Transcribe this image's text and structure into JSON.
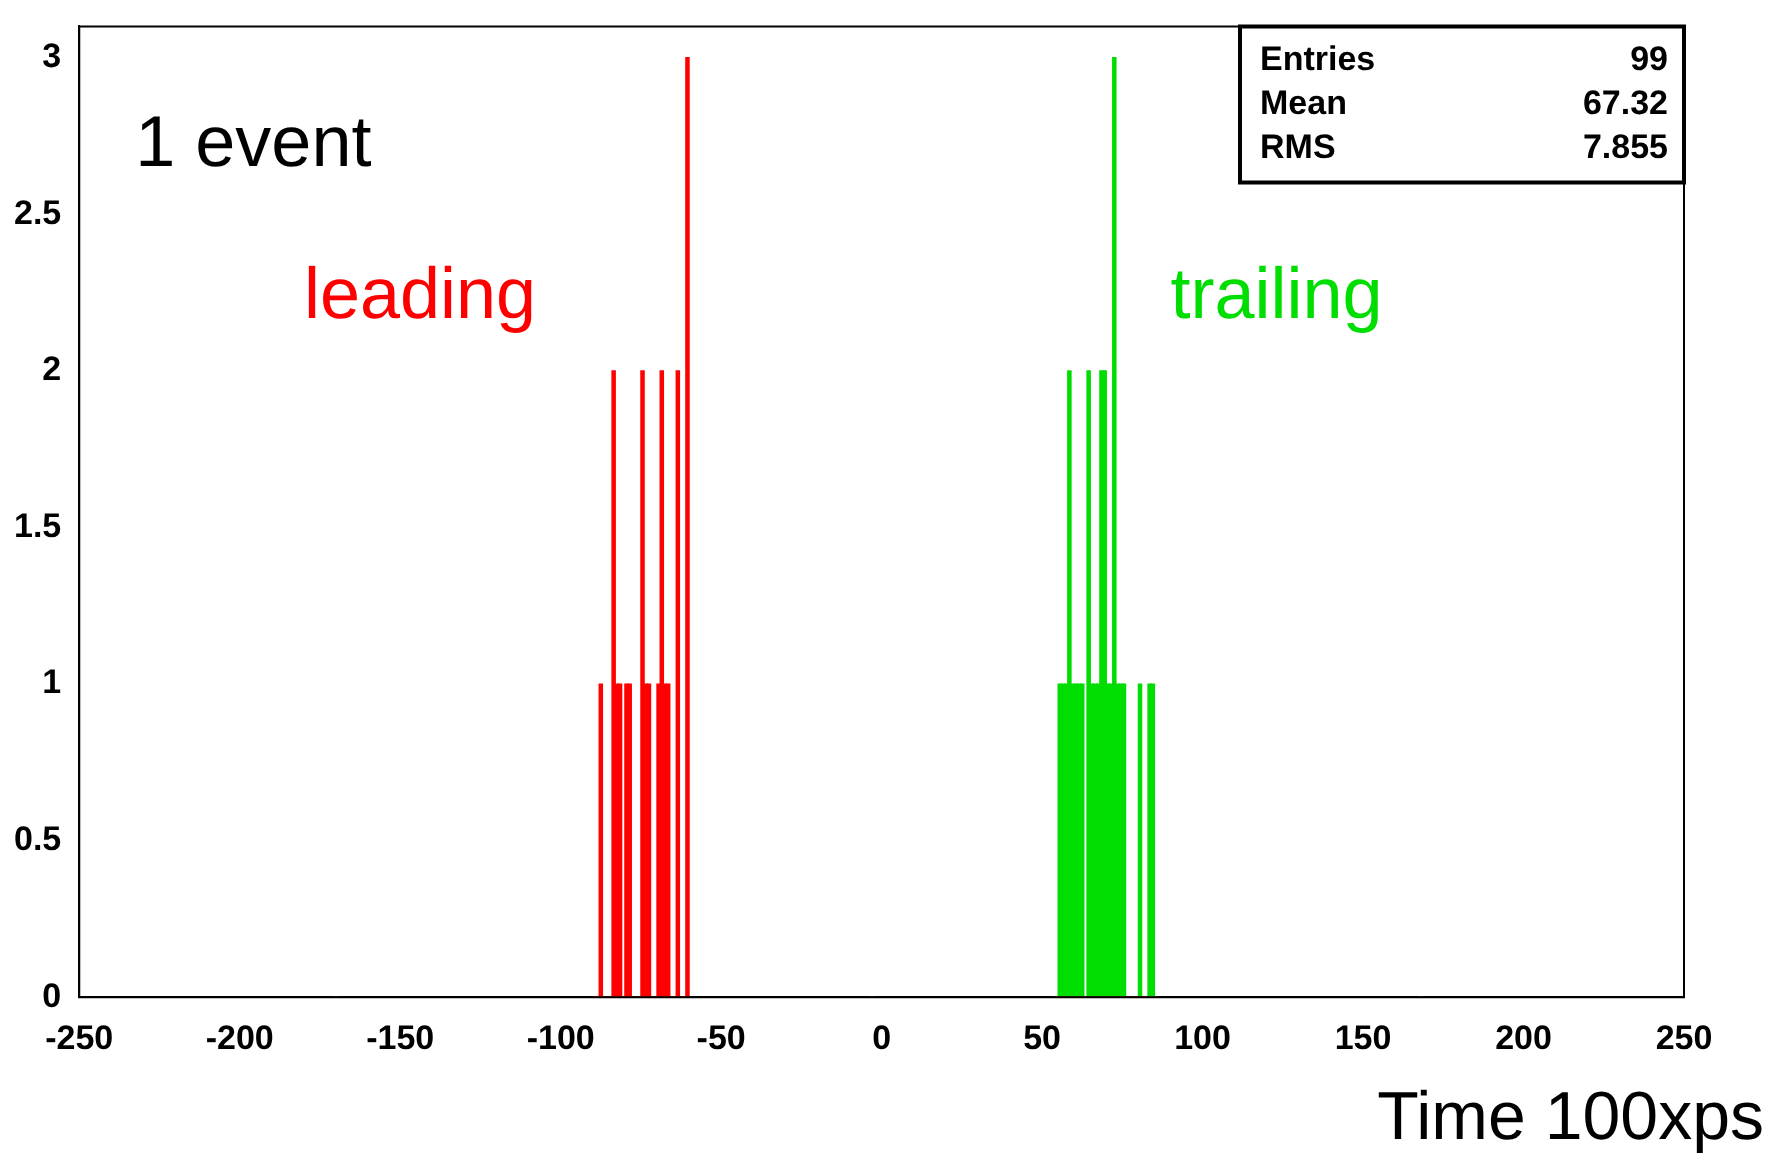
{
  "chart_data": {
    "type": "histogram",
    "xlabel": "Time 100xps",
    "bins": [
      -250,
      -90,
      -89,
      -88,
      -87,
      -86,
      -85,
      -84,
      -83,
      -82,
      -81,
      -80,
      -79,
      -78,
      -77,
      -76,
      -75,
      -74,
      -73,
      -72,
      -71,
      -70,
      -69,
      -68,
      -67,
      -66,
      -65,
      -64,
      -63,
      -62,
      -61,
      -60,
      54,
      55,
      56,
      57,
      58,
      59,
      60,
      61,
      62,
      63,
      64,
      65,
      66,
      67,
      68,
      69,
      70,
      71,
      72,
      73,
      74,
      75,
      76,
      77,
      78,
      79,
      80,
      81,
      82,
      83,
      84,
      85,
      86,
      250
    ],
    "series": [
      {
        "name": "leading",
        "color": "#ff0000",
        "values": [
          0,
          0,
          0,
          1,
          0,
          0,
          0,
          2,
          1,
          1,
          0,
          1,
          1,
          0,
          0,
          0,
          2,
          1,
          1,
          0,
          0,
          1,
          2,
          1,
          1,
          0,
          0,
          2,
          0,
          0,
          3,
          0,
          0,
          0,
          0,
          0,
          0,
          0,
          0,
          0,
          0,
          0,
          0,
          0,
          0,
          0,
          0,
          0,
          0,
          0,
          0,
          0,
          0,
          0,
          0,
          0,
          0,
          0,
          0,
          0,
          0,
          0,
          0,
          0,
          0
        ]
      },
      {
        "name": "trailing",
        "color": "#00dd00",
        "values": [
          0,
          0,
          0,
          0,
          0,
          0,
          0,
          0,
          0,
          0,
          0,
          0,
          0,
          0,
          0,
          0,
          0,
          0,
          0,
          0,
          0,
          0,
          0,
          0,
          0,
          0,
          0,
          0,
          0,
          0,
          0,
          0,
          0,
          1,
          1,
          1,
          2,
          1,
          1,
          1,
          1,
          0,
          2,
          1,
          1,
          1,
          2,
          2,
          1,
          1,
          3,
          1,
          1,
          1,
          0,
          0,
          0,
          0,
          1,
          0,
          0,
          1,
          1,
          0,
          0
        ]
      }
    ],
    "xlim": [
      -250,
      250
    ],
    "xticks": [
      -250,
      -200,
      -150,
      -100,
      -50,
      0,
      50,
      100,
      150,
      200,
      250
    ],
    "ylim": [
      0,
      3.1
    ],
    "yticks": [
      0,
      0.5,
      1,
      1.5,
      2,
      2.5,
      3
    ],
    "grid": false,
    "legend": false,
    "annotations": [
      "1 event",
      "Entries 99",
      "Mean 67.32",
      "RMS 7.855"
    ]
  }
}
